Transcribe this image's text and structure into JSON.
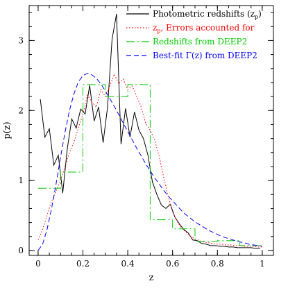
{
  "chart_data": {
    "type": "line",
    "xlabel": "z",
    "ylabel": "p(z)",
    "xlim": [
      -0.04,
      1.05
    ],
    "ylim": [
      -0.07,
      3.5
    ],
    "x_ticks": [
      0,
      0.2,
      0.4,
      0.6,
      0.8,
      1
    ],
    "x_tick_labels": [
      "0",
      "0.2",
      "0.4",
      "0.6",
      "0.8",
      "1"
    ],
    "y_ticks": [
      0,
      1,
      2,
      3
    ],
    "y_tick_labels": [
      "0",
      "1",
      "2",
      "3"
    ],
    "legend_position": "top-right",
    "series": [
      {
        "name": "Photometric redshifts (zₚ)",
        "color": "#000000",
        "style": "solid",
        "x": [
          0.01,
          0.03,
          0.05,
          0.07,
          0.09,
          0.11,
          0.13,
          0.15,
          0.17,
          0.19,
          0.21,
          0.23,
          0.25,
          0.27,
          0.29,
          0.31,
          0.33,
          0.35,
          0.37,
          0.39,
          0.41,
          0.43,
          0.45,
          0.47,
          0.49,
          0.51,
          0.53,
          0.55,
          0.57,
          0.59,
          0.61,
          0.63,
          0.65,
          0.67,
          0.69,
          0.71,
          0.73,
          0.75,
          0.77,
          0.79,
          0.81,
          0.83,
          0.85,
          0.87,
          0.89,
          0.91,
          0.93,
          0.95,
          0.97,
          0.99
        ],
        "y": [
          2.16,
          1.62,
          1.74,
          1.22,
          1.36,
          0.82,
          1.45,
          1.88,
          1.75,
          2.02,
          1.95,
          2.36,
          1.85,
          2.05,
          1.54,
          2.05,
          3.02,
          3.38,
          1.52,
          2.03,
          1.62,
          1.98,
          1.72,
          1.6,
          1.36,
          0.98,
          0.8,
          0.65,
          0.6,
          0.66,
          0.48,
          0.38,
          0.3,
          0.25,
          0.15,
          0.14,
          0.1,
          0.09,
          0.07,
          0.07,
          0.06,
          0.06,
          0.05,
          0.05,
          0.04,
          0.04,
          0.04,
          0.04,
          0.03,
          0.03
        ]
      },
      {
        "name": "zₚ, Errors accounted for",
        "color": "#ff0000",
        "style": "dotted",
        "x": [
          0.0,
          0.02,
          0.04,
          0.06,
          0.08,
          0.1,
          0.12,
          0.14,
          0.16,
          0.18,
          0.2,
          0.22,
          0.24,
          0.26,
          0.28,
          0.3,
          0.32,
          0.34,
          0.36,
          0.38,
          0.4,
          0.42,
          0.44,
          0.46,
          0.48,
          0.5,
          0.52,
          0.54,
          0.56,
          0.58,
          0.6,
          0.62,
          0.64,
          0.66,
          0.68,
          0.7,
          0.72,
          0.74,
          0.76,
          0.78,
          0.8,
          0.82,
          0.84,
          0.86,
          0.88,
          0.9,
          0.92,
          0.94,
          0.96,
          0.98,
          1.0
        ],
        "y": [
          0.15,
          0.3,
          0.5,
          0.7,
          0.85,
          1.0,
          1.2,
          1.4,
          1.55,
          1.75,
          1.95,
          2.22,
          2.12,
          2.05,
          2.3,
          2.2,
          2.35,
          2.52,
          2.38,
          2.45,
          2.3,
          2.35,
          2.2,
          2.05,
          1.82,
          1.72,
          1.58,
          1.35,
          1.05,
          0.78,
          0.55,
          0.42,
          0.32,
          0.26,
          0.2,
          0.17,
          0.14,
          0.12,
          0.11,
          0.1,
          0.09,
          0.09,
          0.08,
          0.08,
          0.07,
          0.07,
          0.06,
          0.06,
          0.06,
          0.05,
          0.05
        ]
      },
      {
        "name": "Redshifts from DEEP2",
        "color": "#00cc00",
        "style": "long-dash-dot",
        "x": [
          0.0,
          0.1,
          0.1,
          0.2,
          0.2,
          0.3,
          0.3,
          0.4,
          0.4,
          0.5,
          0.5,
          0.6,
          0.6,
          0.7,
          0.7,
          0.8,
          0.8,
          0.9,
          0.9,
          1.0
        ],
        "y": [
          0.89,
          0.89,
          1.12,
          1.12,
          2.37,
          2.37,
          2.2,
          2.2,
          2.37,
          2.37,
          0.44,
          0.44,
          0.31,
          0.31,
          0.13,
          0.13,
          0.14,
          0.14,
          0.07,
          0.07
        ]
      },
      {
        "name": "Best-fit Γ(z) from DEEP2",
        "color": "#0000ff",
        "style": "dashed",
        "x": [
          0.0,
          0.02,
          0.04,
          0.06,
          0.08,
          0.1,
          0.12,
          0.14,
          0.16,
          0.18,
          0.2,
          0.22,
          0.24,
          0.26,
          0.28,
          0.3,
          0.32,
          0.34,
          0.36,
          0.38,
          0.4,
          0.42,
          0.44,
          0.46,
          0.48,
          0.5,
          0.52,
          0.54,
          0.56,
          0.58,
          0.6,
          0.62,
          0.64,
          0.66,
          0.68,
          0.7,
          0.72,
          0.74,
          0.76,
          0.78,
          0.8,
          0.82,
          0.84,
          0.86,
          0.88,
          0.9,
          0.92,
          0.94,
          0.96,
          0.98,
          1.0
        ],
        "y": [
          0.0,
          0.09,
          0.3,
          0.6,
          0.95,
          1.33,
          1.69,
          2.0,
          2.24,
          2.41,
          2.5,
          2.53,
          2.51,
          2.46,
          2.38,
          2.28,
          2.17,
          2.06,
          1.94,
          1.82,
          1.7,
          1.58,
          1.46,
          1.35,
          1.24,
          1.14,
          1.04,
          0.95,
          0.86,
          0.78,
          0.71,
          0.64,
          0.57,
          0.51,
          0.46,
          0.41,
          0.37,
          0.33,
          0.29,
          0.26,
          0.23,
          0.2,
          0.18,
          0.16,
          0.14,
          0.12,
          0.11,
          0.09,
          0.08,
          0.07,
          0.06
        ]
      }
    ]
  },
  "legend": {
    "entries": [
      {
        "label": "Photometric redshifts (z",
        "sub": "p",
        "suffix": ")",
        "color": "#000000",
        "style": "solid"
      },
      {
        "label": "z",
        "sub": "p",
        "suffix": ", Errors accounted for",
        "color": "#ff0000",
        "style": "dotted"
      },
      {
        "label": "Redshifts from DEEP2",
        "sub": "",
        "suffix": "",
        "color": "#00cc00",
        "style": "long-dash-dot"
      },
      {
        "label": "Best-fit Γ(z) from DEEP2",
        "sub": "",
        "suffix": "",
        "color": "#0000ff",
        "style": "dashed"
      }
    ]
  }
}
